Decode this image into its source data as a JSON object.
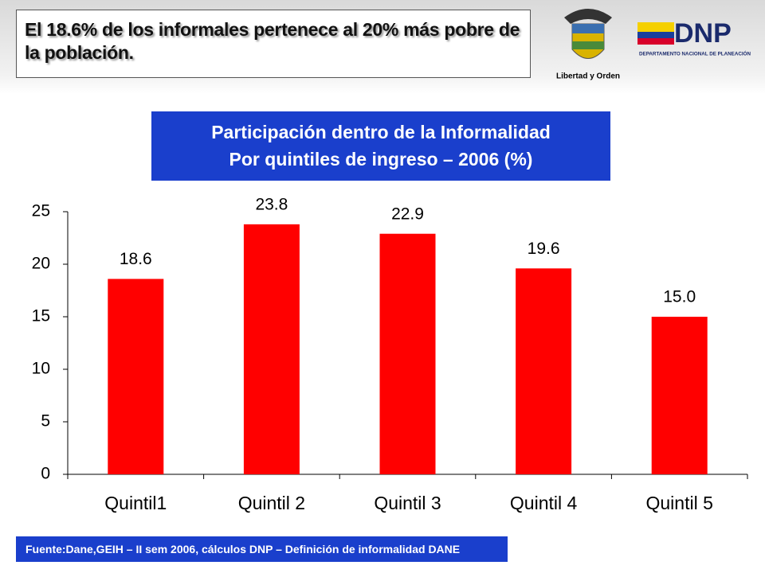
{
  "header": {
    "title": "El 18.6% de los informales pertenece al 20% más pobre de la población."
  },
  "logo": {
    "motto": "Libertad y Orden",
    "brand": "DNP",
    "brand_full": "DEPARTAMENTO NACIONAL DE PLANEACIÓN"
  },
  "chart_data": {
    "type": "bar",
    "title": "Participación dentro de la Informalidad",
    "subtitle": "Por quintiles de ingreso – 2006 (%)",
    "categories": [
      "Quintil1",
      "Quintil 2",
      "Quintil 3",
      "Quintil 4",
      "Quintil 5"
    ],
    "values": [
      18.6,
      23.8,
      22.9,
      19.6,
      15.0
    ],
    "value_labels": [
      "18.6",
      "23.8",
      "22.9",
      "19.6",
      "15.0"
    ],
    "color": "#ff0000",
    "ylim": [
      0,
      25
    ],
    "yticks": [
      0,
      5,
      10,
      15,
      20,
      25
    ],
    "grid": false
  },
  "source": "Fuente:Dane,GEIH – II sem 2006, cálculos DNP – Definición de informalidad DANE"
}
